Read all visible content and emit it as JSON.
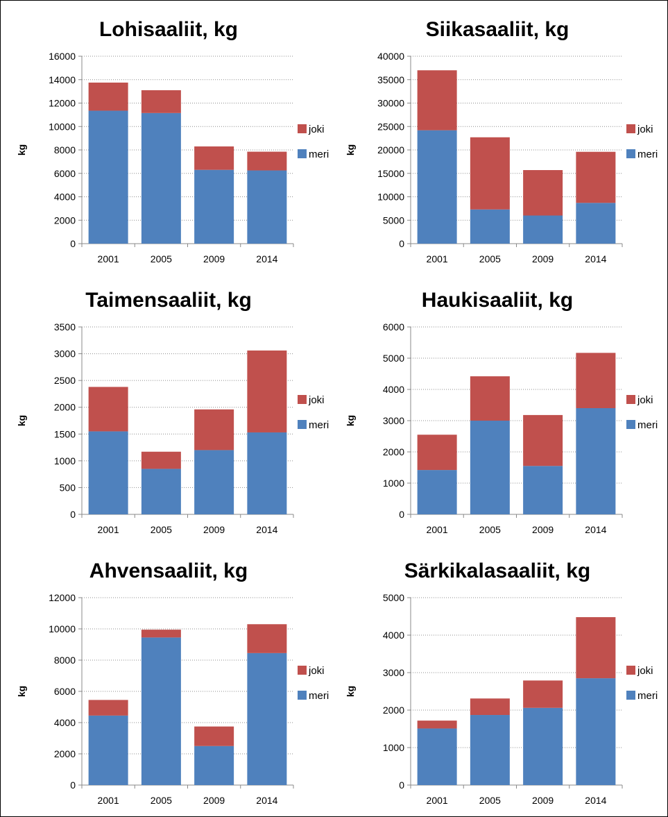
{
  "colors": {
    "joki": "#C0504D",
    "meri": "#4F81BD",
    "grid": "#8c8c8c",
    "axis": "#888888"
  },
  "chart_data": [
    {
      "type": "bar",
      "stacked": true,
      "title": "Lohisaaliit, kg",
      "ylabel": "kg",
      "categories": [
        "2001",
        "2005",
        "2009",
        "2014"
      ],
      "ylim": [
        0,
        16000
      ],
      "yticks": [
        0,
        2000,
        4000,
        6000,
        8000,
        10000,
        12000,
        14000,
        16000
      ],
      "series": [
        {
          "name": "meri",
          "values": [
            11350,
            11150,
            6300,
            6250
          ]
        },
        {
          "name": "joki",
          "values": [
            2400,
            1950,
            2000,
            1600
          ]
        }
      ],
      "legend": "right",
      "grid": true
    },
    {
      "type": "bar",
      "stacked": true,
      "title": "Siikasaaliit, kg",
      "ylabel": "kg",
      "categories": [
        "2001",
        "2005",
        "2009",
        "2014"
      ],
      "ylim": [
        0,
        40000
      ],
      "yticks": [
        0,
        5000,
        10000,
        15000,
        20000,
        25000,
        30000,
        35000,
        40000
      ],
      "series": [
        {
          "name": "meri",
          "values": [
            24200,
            7300,
            6000,
            8700
          ]
        },
        {
          "name": "joki",
          "values": [
            12800,
            15400,
            9700,
            10900
          ]
        }
      ],
      "legend": "right",
      "grid": true
    },
    {
      "type": "bar",
      "stacked": true,
      "title": "Taimensaaliit, kg",
      "ylabel": "kg",
      "categories": [
        "2001",
        "2005",
        "2009",
        "2014"
      ],
      "ylim": [
        0,
        3500
      ],
      "yticks": [
        0,
        500,
        1000,
        1500,
        2000,
        2500,
        3000,
        3500
      ],
      "series": [
        {
          "name": "meri",
          "values": [
            1550,
            850,
            1200,
            1530
          ]
        },
        {
          "name": "joki",
          "values": [
            830,
            320,
            760,
            1530
          ]
        }
      ],
      "legend": "right",
      "grid": true
    },
    {
      "type": "bar",
      "stacked": true,
      "title": "Haukisaaliit, kg",
      "ylabel": "kg",
      "categories": [
        "2001",
        "2005",
        "2009",
        "2014"
      ],
      "ylim": [
        0,
        6000
      ],
      "yticks": [
        0,
        1000,
        2000,
        3000,
        4000,
        5000,
        6000
      ],
      "series": [
        {
          "name": "meri",
          "values": [
            1420,
            3000,
            1550,
            3400
          ]
        },
        {
          "name": "joki",
          "values": [
            1130,
            1420,
            1630,
            1770
          ]
        }
      ],
      "legend": "right",
      "grid": true
    },
    {
      "type": "bar",
      "stacked": true,
      "title": "Ahvensaaliit, kg",
      "ylabel": "kg",
      "categories": [
        "2001",
        "2005",
        "2009",
        "2014"
      ],
      "ylim": [
        0,
        12000
      ],
      "yticks": [
        0,
        2000,
        4000,
        6000,
        8000,
        10000,
        12000
      ],
      "series": [
        {
          "name": "meri",
          "values": [
            4450,
            9450,
            2500,
            8450
          ]
        },
        {
          "name": "joki",
          "values": [
            1000,
            500,
            1250,
            1850
          ]
        }
      ],
      "legend": "right",
      "grid": true
    },
    {
      "type": "bar",
      "stacked": true,
      "title": "Särkikalasaaliit, kg",
      "ylabel": "kg",
      "categories": [
        "2001",
        "2005",
        "2009",
        "2014"
      ],
      "ylim": [
        0,
        5000
      ],
      "yticks": [
        0,
        1000,
        2000,
        3000,
        4000,
        5000
      ],
      "series": [
        {
          "name": "meri",
          "values": [
            1510,
            1870,
            2060,
            2850
          ]
        },
        {
          "name": "joki",
          "values": [
            210,
            440,
            730,
            1630
          ]
        }
      ],
      "legend": "right",
      "grid": true
    }
  ]
}
